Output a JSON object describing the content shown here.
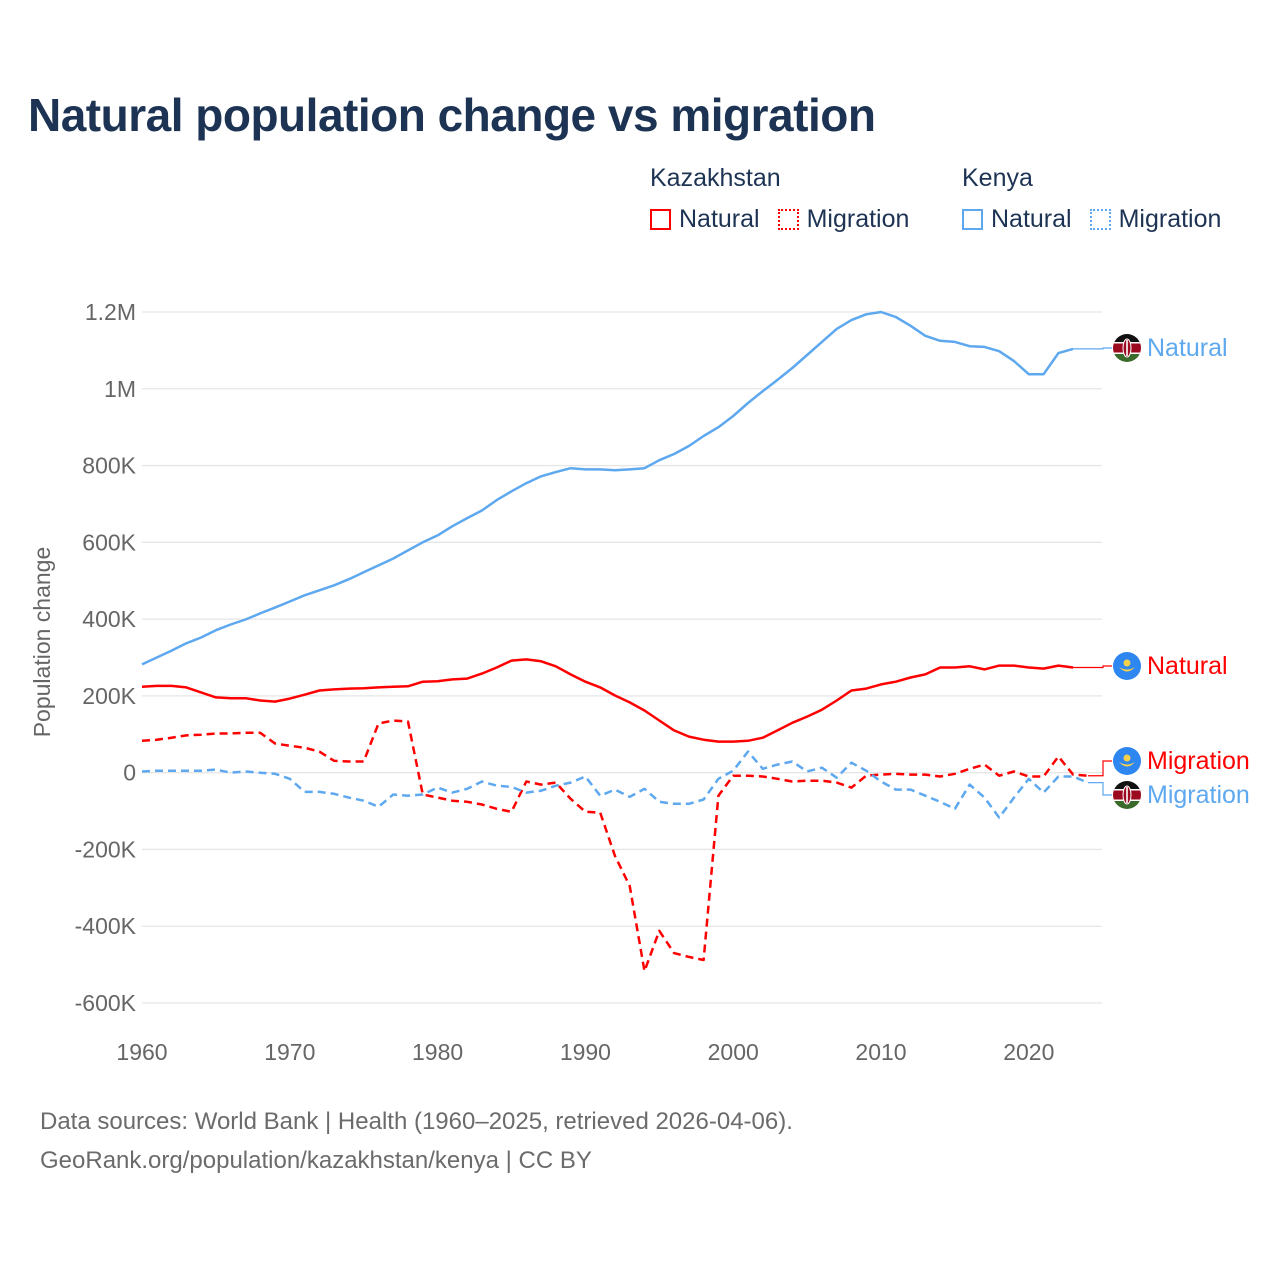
{
  "title": "Natural population change vs migration",
  "legend": {
    "groups": [
      {
        "name": "Kazakhstan",
        "items": [
          {
            "label": "Natural",
            "style": "solid",
            "color": "#ff0000"
          },
          {
            "label": "Migration",
            "style": "dotted",
            "color": "#ff0000"
          }
        ]
      },
      {
        "name": "Kenya",
        "items": [
          {
            "label": "Natural",
            "style": "solid",
            "color": "#5ea8ef"
          },
          {
            "label": "Migration",
            "style": "dotted",
            "color": "#5ea8ef"
          }
        ]
      }
    ]
  },
  "footer": {
    "line1": "Data sources: World Bank | Health (1960–2025, retrieved 2026-04-06).",
    "line2": "GeoRank.org/population/kazakhstan/kenya | CC BY"
  },
  "chart_data": {
    "type": "line",
    "title": "Natural population change vs migration",
    "xlabel": "",
    "ylabel": "Population change",
    "xlim": [
      1960,
      2025
    ],
    "ylim": [
      -600000,
      1200000
    ],
    "x_ticks": [
      1960,
      1970,
      1980,
      1990,
      2000,
      2010,
      2020
    ],
    "x_tick_labels": [
      "1960",
      "1970",
      "1980",
      "1990",
      "2000",
      "2010",
      "2020"
    ],
    "y_ticks": [
      1200000,
      1000000,
      800000,
      600000,
      400000,
      200000,
      0,
      -200000,
      -400000,
      -600000
    ],
    "y_tick_labels": [
      "1.2M",
      "1M",
      "800K",
      "600K",
      "400K",
      "200K",
      "0",
      "-200K",
      "-400K",
      "-600K"
    ],
    "grid": true,
    "legend_position": "top-right",
    "series": [
      {
        "name": "Kenya Natural",
        "country": "Kenya",
        "label": "Natural",
        "color": "#5ea8ef",
        "dash": "solid",
        "flag": "kenya-flag",
        "start_year": 1960,
        "values": [
          282000,
          300000,
          318000,
          337000,
          352000,
          371000,
          386000,
          399000,
          415000,
          430000,
          446000,
          462000,
          475000,
          488000,
          504000,
          522000,
          540000,
          558000,
          579000,
          600000,
          618000,
          642000,
          663000,
          683000,
          710000,
          733000,
          754000,
          772000,
          783000,
          793000,
          790000,
          790000,
          788000,
          790000,
          793000,
          814000,
          830000,
          851000,
          877000,
          900000,
          929000,
          963000,
          994000,
          1023000,
          1054000,
          1088000,
          1122000,
          1156000,
          1179000,
          1194000,
          1200000,
          1187000,
          1164000,
          1138000,
          1125000,
          1122000,
          1111000,
          1109000,
          1098000,
          1072000,
          1038000,
          1038000,
          1093000,
          1104000
        ]
      },
      {
        "name": "Kazakhstan Natural",
        "country": "Kazakhstan",
        "label": "Natural",
        "color": "#ff0000",
        "dash": "solid",
        "flag": "kazakhstan-flag",
        "start_year": 1960,
        "values": [
          224000,
          226000,
          226000,
          222000,
          209000,
          196000,
          194000,
          194000,
          188000,
          185000,
          193000,
          203000,
          214000,
          217000,
          219000,
          220000,
          222000,
          224000,
          225000,
          237000,
          238000,
          243000,
          245000,
          258000,
          274000,
          292000,
          295000,
          290000,
          277000,
          256000,
          237000,
          222000,
          201000,
          183000,
          162000,
          136000,
          110000,
          94000,
          86000,
          81000,
          81000,
          83000,
          91000,
          110000,
          130000,
          146000,
          164000,
          188000,
          214000,
          219000,
          230000,
          237000,
          248000,
          256000,
          274000,
          274000,
          277000,
          269000,
          279000,
          279000,
          274000,
          271000,
          279000,
          274000
        ]
      },
      {
        "name": "Kazakhstan Migration",
        "country": "Kazakhstan",
        "label": "Migration",
        "color": "#ff0000",
        "dash": "dashed",
        "flag": "kazakhstan-flag",
        "start_year": 1960,
        "values": [
          83000,
          86000,
          91000,
          97000,
          99000,
          102000,
          102000,
          104000,
          104000,
          76000,
          70000,
          65000,
          55000,
          31000,
          29000,
          29000,
          128000,
          136000,
          133000,
          -57000,
          -65000,
          -73000,
          -76000,
          -83000,
          -94000,
          -102000,
          -23000,
          -31000,
          -26000,
          -68000,
          -102000,
          -104000,
          -217000,
          -295000,
          -517000,
          -412000,
          -470000,
          -480000,
          -488000,
          -60000,
          -8000,
          -8000,
          -10000,
          -16000,
          -23000,
          -21000,
          -21000,
          -26000,
          -39000,
          -8000,
          -5000,
          -3000,
          -5000,
          -5000,
          -10000,
          -3000,
          10000,
          21000,
          -8000,
          3000,
          -10000,
          -10000,
          42000,
          -5000,
          -8000
        ]
      },
      {
        "name": "Kenya Migration",
        "country": "Kenya",
        "label": "Migration",
        "color": "#5ea8ef",
        "dash": "dashed",
        "flag": "kenya-flag",
        "start_year": 1960,
        "values": [
          3000,
          5000,
          5000,
          5000,
          5000,
          8000,
          0,
          3000,
          0,
          -3000,
          -16000,
          -50000,
          -50000,
          -55000,
          -65000,
          -73000,
          -89000,
          -57000,
          -60000,
          -57000,
          -39000,
          -52000,
          -42000,
          -23000,
          -34000,
          -37000,
          -52000,
          -47000,
          -34000,
          -26000,
          -10000,
          -60000,
          -44000,
          -63000,
          -42000,
          -76000,
          -81000,
          -81000,
          -70000,
          -16000,
          5000,
          55000,
          10000,
          21000,
          29000,
          3000,
          13000,
          -13000,
          26000,
          5000,
          -23000,
          -44000,
          -44000,
          -60000,
          -76000,
          -94000,
          -31000,
          -65000,
          -117000,
          -65000,
          -16000,
          -52000,
          -10000,
          -10000,
          -26000
        ]
      }
    ]
  }
}
